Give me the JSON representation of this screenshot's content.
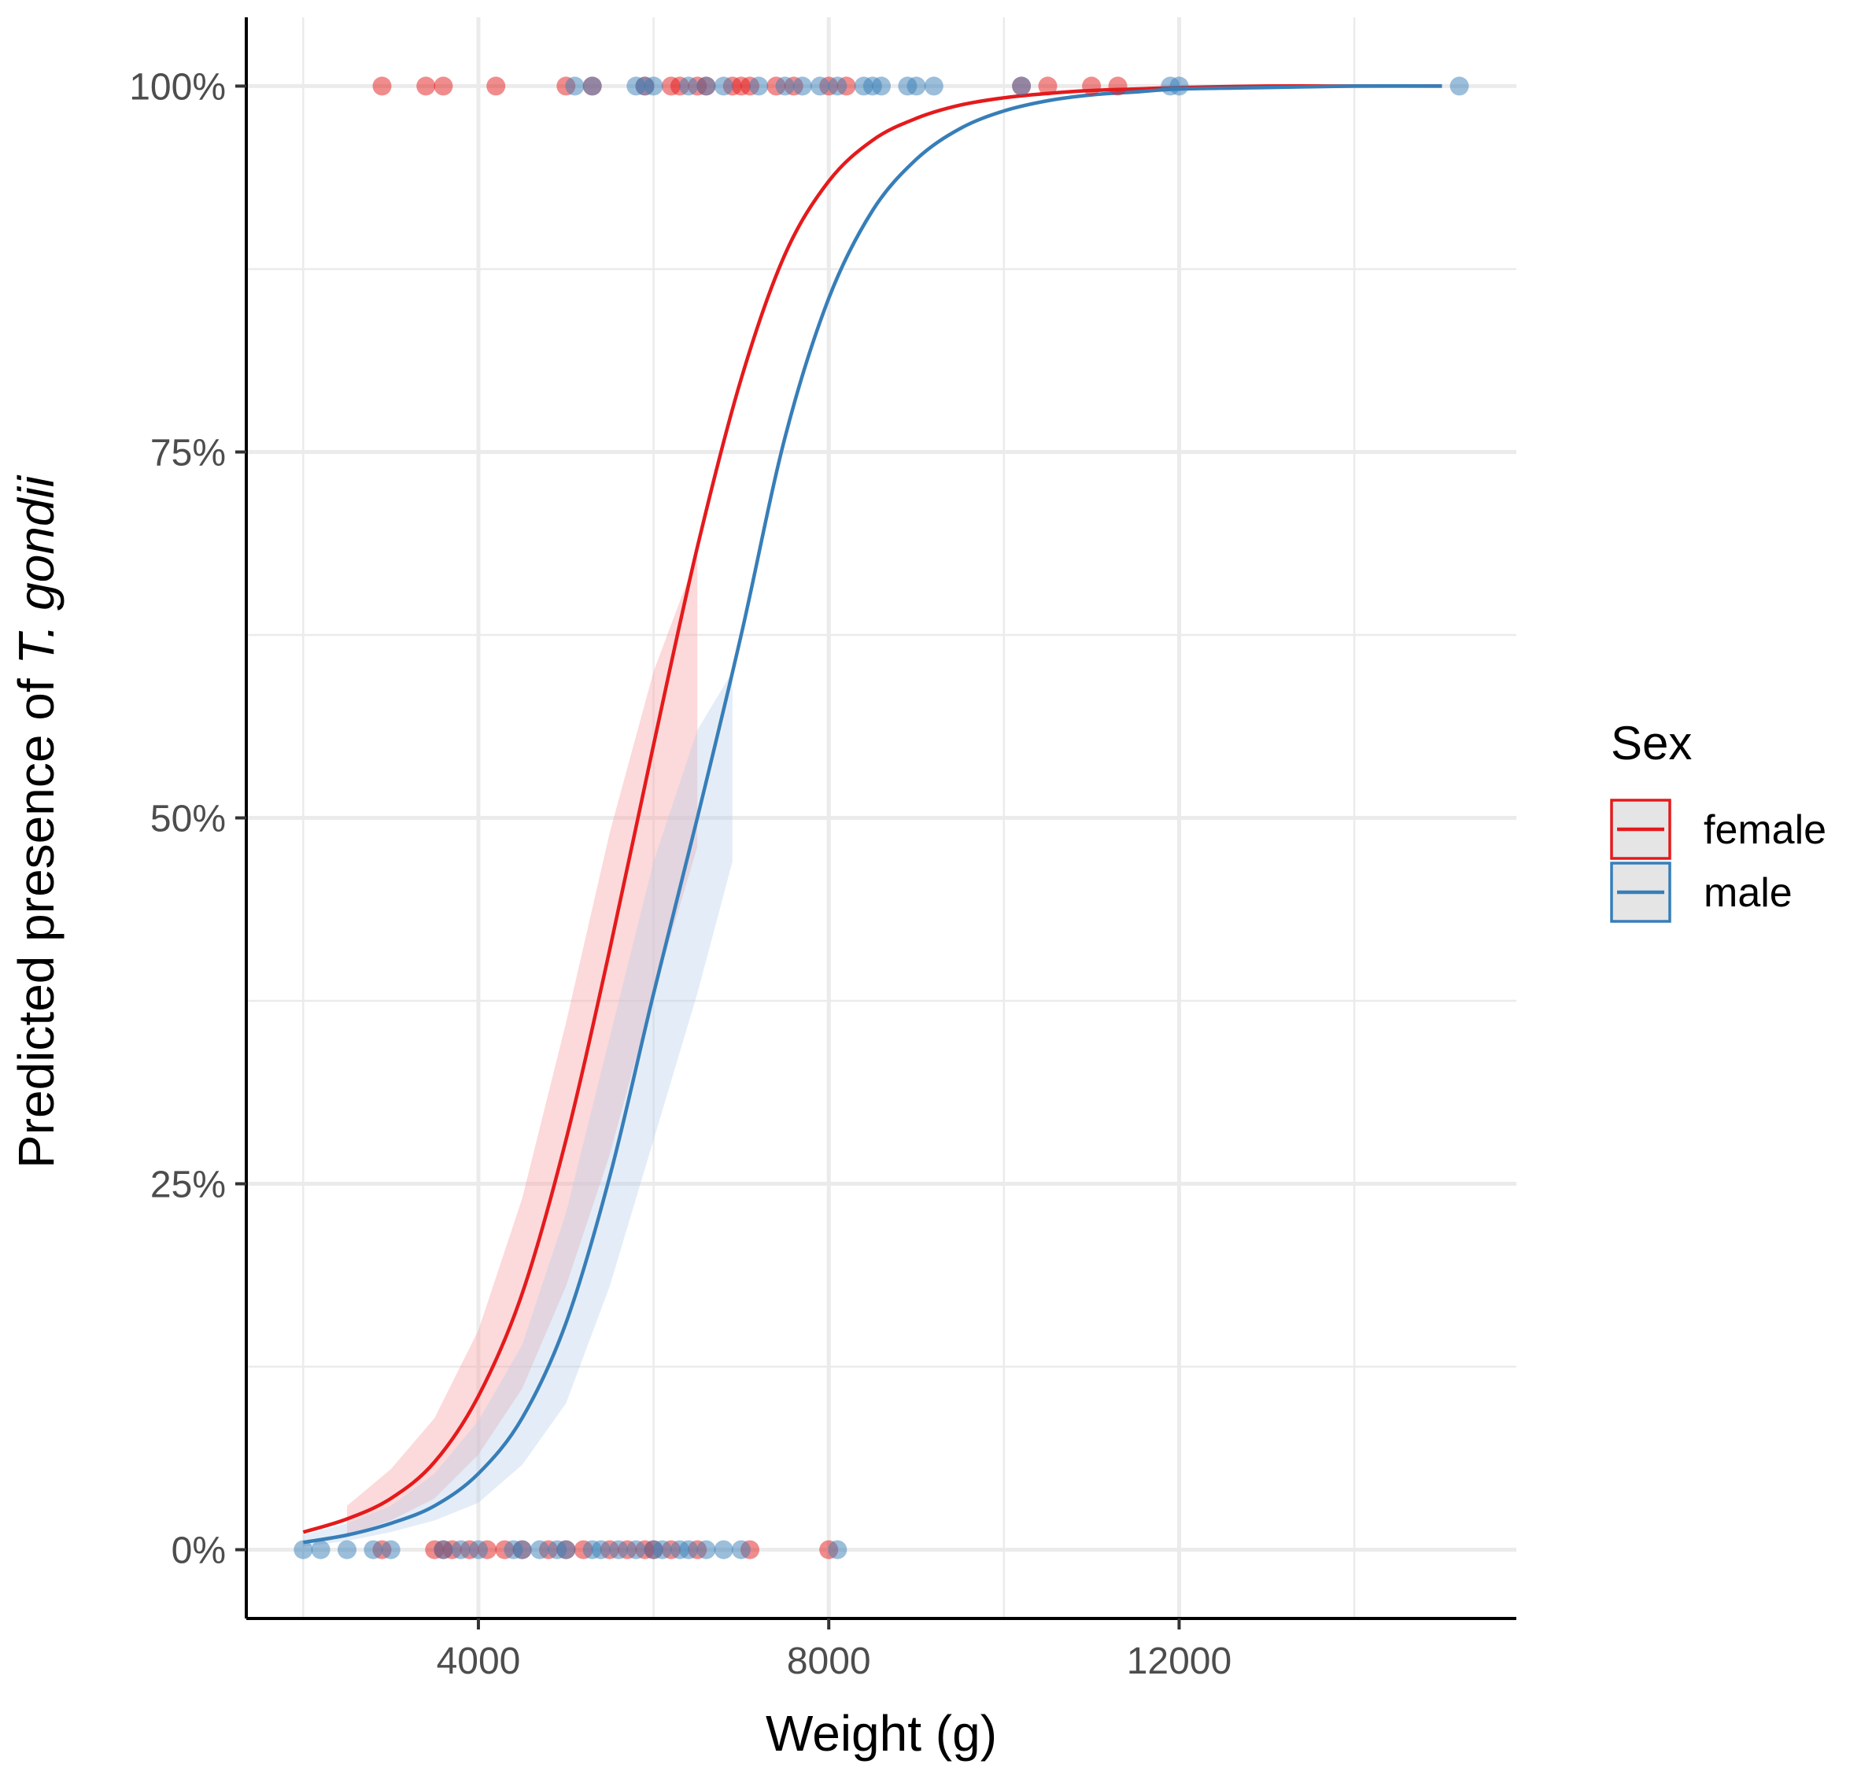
{
  "chart_data": {
    "type": "scatter",
    "title": "",
    "xlabel": "Weight (g)",
    "ylabel_prefix": "Predicted presence of ",
    "ylabel_italic": "T. gondii",
    "xlim": [
      1350,
      15850
    ],
    "ylim": [
      -0.047,
      1.047
    ],
    "x_ticks": [
      4000,
      8000,
      12000
    ],
    "x_tick_labels": [
      "4000",
      "8000",
      "12000"
    ],
    "x_minor": [
      2000,
      6000,
      10000,
      14000
    ],
    "y_ticks": [
      0,
      0.25,
      0.5,
      0.75,
      1
    ],
    "y_tick_labels": [
      "0%",
      "25%",
      "50%",
      "75%",
      "100%"
    ],
    "y_minor": [
      0.125,
      0.375,
      0.625,
      0.875
    ],
    "grid": true,
    "legend": {
      "title": "Sex",
      "position": "right",
      "entries": [
        {
          "label": "female",
          "color": "#e41a1c"
        },
        {
          "label": "male",
          "color": "#377eb8"
        }
      ]
    },
    "colors": {
      "female": "#e41a1c",
      "male": "#377eb8",
      "female_ribbon": "#f8a5a8",
      "male_ribbon": "#b9cfea",
      "grid": "#ebebeb",
      "axis": "#000000"
    },
    "series": [
      {
        "name": "female",
        "type": "line",
        "x": [
          2000,
          2500,
          3000,
          3500,
          4000,
          4500,
          5000,
          5500,
          6000,
          6500,
          7000,
          7500,
          8000,
          8500,
          9000,
          9500,
          10000,
          10500,
          11000,
          11500,
          12000,
          13000,
          14000,
          15000
        ],
        "y": [
          0.012,
          0.021,
          0.035,
          0.06,
          0.105,
          0.175,
          0.28,
          0.41,
          0.55,
          0.685,
          0.8,
          0.885,
          0.935,
          0.963,
          0.978,
          0.987,
          0.992,
          0.995,
          0.997,
          0.998,
          0.999,
          1.0,
          1.0,
          1.0
        ]
      },
      {
        "name": "male",
        "type": "line",
        "x": [
          2000,
          2500,
          3000,
          3500,
          4000,
          4500,
          5000,
          5500,
          6000,
          6500,
          7000,
          7500,
          8000,
          8500,
          9000,
          9500,
          10000,
          10500,
          11000,
          11500,
          12000,
          13000,
          14000,
          15000
        ],
        "y": [
          0.005,
          0.01,
          0.018,
          0.03,
          0.052,
          0.09,
          0.155,
          0.255,
          0.38,
          0.5,
          0.625,
          0.76,
          0.855,
          0.915,
          0.95,
          0.971,
          0.983,
          0.99,
          0.994,
          0.996,
          0.998,
          0.999,
          1.0,
          1.0
        ]
      },
      {
        "name": "female 95% CI",
        "type": "ribbon",
        "x": [
          2500,
          3000,
          3500,
          4000,
          4500,
          5000,
          5500,
          6000,
          6500
        ],
        "lower": [
          0.01,
          0.02,
          0.035,
          0.065,
          0.11,
          0.18,
          0.27,
          0.38,
          0.48
        ],
        "upper": [
          0.03,
          0.055,
          0.09,
          0.15,
          0.24,
          0.36,
          0.49,
          0.6,
          0.68
        ]
      },
      {
        "name": "male 95% CI",
        "type": "ribbon",
        "x": [
          2000,
          2500,
          3000,
          3500,
          4000,
          4500,
          5000,
          5500,
          6000,
          6500,
          6900
        ],
        "lower": [
          0.002,
          0.006,
          0.012,
          0.02,
          0.032,
          0.058,
          0.1,
          0.18,
          0.28,
          0.38,
          0.47
        ],
        "upper": [
          0.01,
          0.018,
          0.03,
          0.052,
          0.088,
          0.14,
          0.23,
          0.35,
          0.47,
          0.56,
          0.6
        ]
      },
      {
        "name": "female observations",
        "type": "scatter",
        "points": [
          [
            2900,
            1
          ],
          [
            3400,
            1
          ],
          [
            3600,
            1
          ],
          [
            4200,
            1
          ],
          [
            5000,
            1
          ],
          [
            5300,
            1
          ],
          [
            5900,
            1
          ],
          [
            6200,
            1
          ],
          [
            6300,
            1
          ],
          [
            6500,
            1
          ],
          [
            6600,
            1
          ],
          [
            6900,
            1
          ],
          [
            7000,
            1
          ],
          [
            7100,
            1
          ],
          [
            7400,
            1
          ],
          [
            7600,
            1
          ],
          [
            8000,
            1
          ],
          [
            8200,
            1
          ],
          [
            10200,
            1
          ],
          [
            10500,
            1
          ],
          [
            11000,
            1
          ],
          [
            11300,
            1
          ],
          [
            2900,
            0
          ],
          [
            3500,
            0
          ],
          [
            3600,
            0
          ],
          [
            3700,
            0
          ],
          [
            3900,
            0
          ],
          [
            4100,
            0
          ],
          [
            4300,
            0
          ],
          [
            4500,
            0
          ],
          [
            4800,
            0
          ],
          [
            5000,
            0
          ],
          [
            5200,
            0
          ],
          [
            5500,
            0
          ],
          [
            5700,
            0
          ],
          [
            5900,
            0
          ],
          [
            6000,
            0
          ],
          [
            6200,
            0
          ],
          [
            6500,
            0
          ],
          [
            7100,
            0
          ],
          [
            8000,
            0
          ]
        ]
      },
      {
        "name": "male observations",
        "type": "scatter",
        "points": [
          [
            5100,
            1
          ],
          [
            5300,
            1
          ],
          [
            5800,
            1
          ],
          [
            5900,
            1
          ],
          [
            6000,
            1
          ],
          [
            6400,
            1
          ],
          [
            6600,
            1
          ],
          [
            6800,
            1
          ],
          [
            7200,
            1
          ],
          [
            7500,
            1
          ],
          [
            7700,
            1
          ],
          [
            7900,
            1
          ],
          [
            8100,
            1
          ],
          [
            8400,
            1
          ],
          [
            8500,
            1
          ],
          [
            8600,
            1
          ],
          [
            8900,
            1
          ],
          [
            9000,
            1
          ],
          [
            9200,
            1
          ],
          [
            10200,
            1
          ],
          [
            11900,
            1
          ],
          [
            12000,
            1
          ],
          [
            15200,
            1
          ],
          [
            2000,
            0
          ],
          [
            2200,
            0
          ],
          [
            2500,
            0
          ],
          [
            2800,
            0
          ],
          [
            3000,
            0
          ],
          [
            3600,
            0
          ],
          [
            3800,
            0
          ],
          [
            4000,
            0
          ],
          [
            4400,
            0
          ],
          [
            4500,
            0
          ],
          [
            4700,
            0
          ],
          [
            4900,
            0
          ],
          [
            5000,
            0
          ],
          [
            5300,
            0
          ],
          [
            5400,
            0
          ],
          [
            5600,
            0
          ],
          [
            5800,
            0
          ],
          [
            6000,
            0
          ],
          [
            6100,
            0
          ],
          [
            6300,
            0
          ],
          [
            6400,
            0
          ],
          [
            6600,
            0
          ],
          [
            6800,
            0
          ],
          [
            7000,
            0
          ],
          [
            8100,
            0
          ]
        ]
      }
    ]
  }
}
